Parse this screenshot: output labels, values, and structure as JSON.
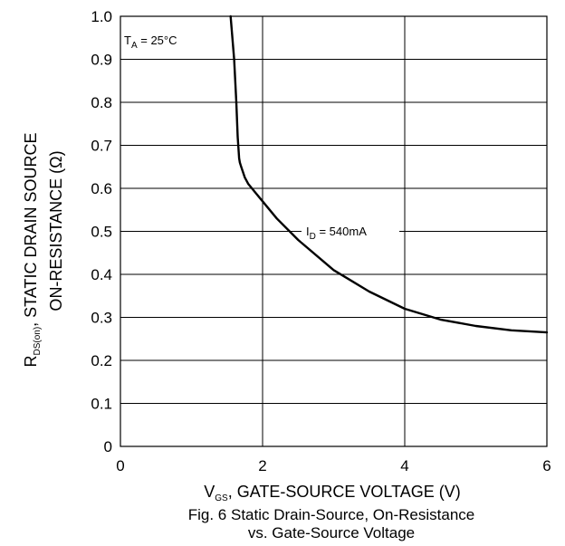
{
  "chart_data": {
    "type": "line",
    "xlabel": {
      "base": "V",
      "sub": "GS",
      "rest": ", GATE-SOURCE VOLTAGE (V)"
    },
    "ylabel": {
      "line1": {
        "base": "R",
        "sub": "DS(on)",
        "rest": ", STATIC DRAIN SOURCE"
      },
      "line2": "ON-RESISTANCE (Ω)"
    },
    "xlim": [
      0,
      6
    ],
    "ylim": [
      0,
      1.0
    ],
    "xticks": [
      "0",
      "2",
      "4",
      "6"
    ],
    "yticks": [
      "0",
      "0.1",
      "0.2",
      "0.3",
      "0.4",
      "0.5",
      "0.6",
      "0.7",
      "0.8",
      "0.9",
      "1.0"
    ],
    "grid": true,
    "annotations": [
      {
        "base": "T",
        "sub": "A",
        "rest": " = 25°C"
      },
      {
        "base": "I",
        "sub": "D",
        "rest": " = 540mA"
      }
    ],
    "caption": [
      "Fig. 6  Static Drain-Source, On-Resistance",
      "vs. Gate-Source Voltage"
    ],
    "series": [
      {
        "name": "I_D = 540mA",
        "x": [
          1.55,
          1.6,
          1.63,
          1.65,
          1.67,
          1.68,
          1.7,
          1.72,
          1.75,
          1.8,
          1.9,
          2.0,
          2.2,
          2.5,
          3.0,
          3.5,
          4.0,
          4.5,
          5.0,
          5.5,
          6.0
        ],
        "y": [
          1.0,
          0.9,
          0.8,
          0.72,
          0.67,
          0.66,
          0.65,
          0.64,
          0.625,
          0.61,
          0.59,
          0.57,
          0.53,
          0.48,
          0.41,
          0.36,
          0.32,
          0.295,
          0.28,
          0.27,
          0.265
        ]
      }
    ],
    "colors": {
      "line": "#000000",
      "grid": "#000000",
      "background": "#ffffff"
    }
  }
}
